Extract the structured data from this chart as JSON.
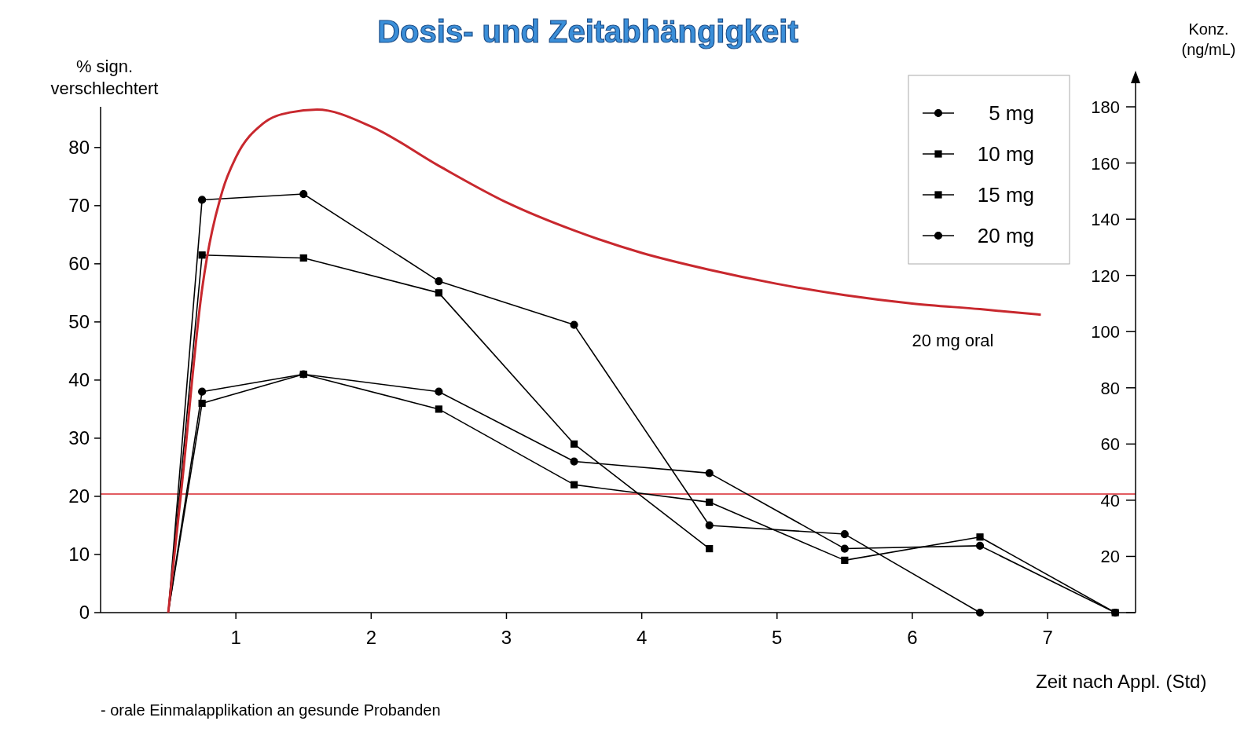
{
  "chart_data": {
    "type": "line",
    "title": "Dosis- und Zeitabhängigkeit",
    "xlabel": "Zeit nach Appl. (Std)",
    "ylabel": "% sign. verschlechtert",
    "y2label": "Konz. (ng/mL)",
    "annotations": [
      "- orale Einmalapplikation an gesunde Probanden"
    ],
    "xlim": [
      0,
      7.65
    ],
    "xticks": [
      1,
      2,
      3,
      4,
      5,
      6,
      7
    ],
    "ylim": [
      0,
      87
    ],
    "yticks": [
      0,
      10,
      20,
      30,
      40,
      50,
      60,
      70,
      80
    ],
    "y2lim": [
      0,
      180
    ],
    "y2ticks": [
      {
        "value": 0,
        "label": null
      },
      20,
      40,
      60,
      80,
      100,
      120,
      140,
      160,
      180
    ],
    "legend": "top right",
    "grid": false,
    "ref_lines": [
      {
        "axis": "y",
        "value": 20.4,
        "label": null,
        "color": "#d9262c"
      }
    ],
    "series": [
      {
        "name": "5 mg",
        "color": "#000000",
        "marker": "circle",
        "x": [
          0.5,
          0.75,
          1.5,
          2.5,
          3.5,
          4.5,
          5.5,
          6.5,
          7.5
        ],
        "values": [
          0,
          38,
          41,
          38,
          26,
          24,
          11,
          11.5,
          0
        ]
      },
      {
        "name": "10 mg",
        "color": "#000000",
        "marker": "square",
        "x": [
          0.5,
          0.75,
          1.5,
          2.5,
          3.5,
          4.5,
          5.5,
          6.5,
          7.5
        ],
        "values": [
          0,
          36,
          41,
          35,
          22,
          19,
          9,
          13,
          0
        ]
      },
      {
        "name": "15 mg",
        "color": "#000000",
        "marker": "square",
        "x": [
          0.5,
          0.75,
          1.5,
          2.5,
          3.5,
          4.5
        ],
        "values": [
          0,
          61.5,
          61,
          55,
          29,
          11
        ]
      },
      {
        "name": "20 mg",
        "color": "#000000",
        "marker": "circle",
        "x": [
          0.5,
          0.75,
          1.5,
          2.5,
          3.5,
          4.5,
          5.5,
          6.5
        ],
        "values": [
          0,
          71,
          72,
          57,
          49.5,
          15,
          13.5,
          0
        ]
      },
      {
        "name": "20 mg oral",
        "color": "#c8282e",
        "axis": "y2",
        "marker": "none",
        "x": [
          0.5,
          0.6,
          0.75,
          0.9,
          1.0,
          1.2,
          1.4,
          1.6,
          2.0,
          2.5,
          3.0,
          3.5,
          4.0,
          4.5,
          5.0,
          5.5,
          6.0,
          6.5,
          6.95
        ],
        "values": [
          0,
          45,
          115,
          150,
          162,
          174,
          178,
          179,
          173,
          159,
          146,
          136,
          128,
          122,
          117,
          113,
          110,
          108,
          106
        ]
      }
    ]
  }
}
